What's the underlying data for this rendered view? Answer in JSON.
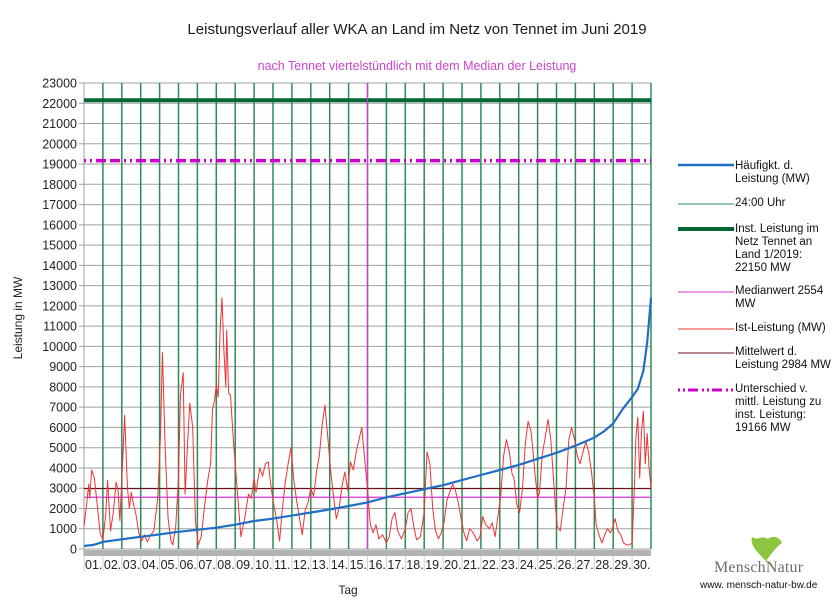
{
  "chart_data": {
    "type": "line",
    "title": "Leistungsverlauf aller WKA an Land im Netz von Tennet im Juni 2019",
    "subtitle": "nach Tennet viertelstündlich mit dem Median der Leistung",
    "xlabel": "Tag",
    "ylabel": "Leistung in MW",
    "ylim": [
      0,
      23000
    ],
    "xlim": [
      0,
      30
    ],
    "y_ticks": [
      0,
      1000,
      2000,
      3000,
      4000,
      5000,
      6000,
      7000,
      8000,
      9000,
      10000,
      11000,
      12000,
      13000,
      14000,
      15000,
      16000,
      17000,
      18000,
      19000,
      20000,
      21000,
      22000,
      23000
    ],
    "x_tick_labels": [
      "01.",
      "02.",
      "03.",
      "04.",
      "05.",
      "06.",
      "07.",
      "08.",
      "09.",
      "10.",
      "11.",
      "12.",
      "13.",
      "14.",
      "15.",
      "16.",
      "17.",
      "18.",
      "19.",
      "20.",
      "21.",
      "22.",
      "23.",
      "24.",
      "25.",
      "26.",
      "27.",
      "28.",
      "29.",
      "30."
    ],
    "grid": true,
    "legend_position": "right",
    "series": [
      {
        "name": "Häufigkt. d. Leistung (MW)",
        "color": "#1f6fc4",
        "style": "solid-thick",
        "points": [
          [
            0,
            150
          ],
          [
            0.5,
            200
          ],
          [
            1,
            350
          ],
          [
            2,
            480
          ],
          [
            3,
            600
          ],
          [
            4,
            720
          ],
          [
            5,
            850
          ],
          [
            6,
            950
          ],
          [
            7,
            1050
          ],
          [
            8,
            1200
          ],
          [
            9,
            1380
          ],
          [
            10,
            1500
          ],
          [
            11,
            1650
          ],
          [
            12,
            1800
          ],
          [
            13,
            1950
          ],
          [
            14,
            2120
          ],
          [
            15,
            2300
          ],
          [
            16,
            2550
          ],
          [
            17,
            2750
          ],
          [
            18,
            2950
          ],
          [
            19,
            3150
          ],
          [
            20,
            3400
          ],
          [
            21,
            3650
          ],
          [
            22,
            3900
          ],
          [
            23,
            4150
          ],
          [
            24,
            4450
          ],
          [
            25,
            4750
          ],
          [
            26,
            5100
          ],
          [
            27,
            5500
          ],
          [
            27.5,
            5800
          ],
          [
            28,
            6200
          ],
          [
            28.5,
            6900
          ],
          [
            29,
            7500
          ],
          [
            29.3,
            7900
          ],
          [
            29.6,
            8800
          ],
          [
            29.8,
            10200
          ],
          [
            30,
            12400
          ]
        ]
      },
      {
        "name": "24:00 Uhr",
        "color": "#2e8b57",
        "style": "vertical-day-lines"
      },
      {
        "name": "Inst. Leistung im Netz Tennet an Land 1/2019: 22150  MW",
        "color": "#006633",
        "style": "solid-very-thick",
        "value": 22150
      },
      {
        "name": "Medianwert 2554 MW",
        "color": "#dd33dd",
        "style": "solid-thin",
        "value": 2554,
        "median_day": 15
      },
      {
        "name": "Ist-Leistung (MW)",
        "color": "#ee3333",
        "style": "solid-thin",
        "points": [
          [
            0,
            1100
          ],
          [
            0.15,
            2300
          ],
          [
            0.25,
            3200
          ],
          [
            0.3,
            2500
          ],
          [
            0.4,
            3900
          ],
          [
            0.55,
            3500
          ],
          [
            0.7,
            2200
          ],
          [
            0.85,
            800
          ],
          [
            1,
            450
          ],
          [
            1.15,
            1700
          ],
          [
            1.25,
            3400
          ],
          [
            1.4,
            900
          ],
          [
            1.55,
            1800
          ],
          [
            1.7,
            3300
          ],
          [
            1.8,
            2900
          ],
          [
            1.9,
            1400
          ],
          [
            2.05,
            4400
          ],
          [
            2.15,
            6600
          ],
          [
            2.3,
            3000
          ],
          [
            2.4,
            2000
          ],
          [
            2.5,
            2800
          ],
          [
            2.6,
            2300
          ],
          [
            2.75,
            1700
          ],
          [
            2.9,
            800
          ],
          [
            3.05,
            400
          ],
          [
            3.2,
            700
          ],
          [
            3.35,
            350
          ],
          [
            3.5,
            650
          ],
          [
            3.7,
            900
          ],
          [
            3.9,
            2500
          ],
          [
            4.05,
            5600
          ],
          [
            4.15,
            9700
          ],
          [
            4.3,
            4800
          ],
          [
            4.45,
            1500
          ],
          [
            4.6,
            400
          ],
          [
            4.7,
            200
          ],
          [
            4.85,
            1100
          ],
          [
            5,
            3500
          ],
          [
            5.1,
            7600
          ],
          [
            5.25,
            8700
          ],
          [
            5.35,
            2700
          ],
          [
            5.5,
            5500
          ],
          [
            5.6,
            7200
          ],
          [
            5.75,
            6000
          ],
          [
            5.9,
            1300
          ],
          [
            6.05,
            200
          ],
          [
            6.2,
            600
          ],
          [
            6.4,
            2300
          ],
          [
            6.55,
            3400
          ],
          [
            6.7,
            4200
          ],
          [
            6.8,
            6900
          ],
          [
            6.9,
            7300
          ],
          [
            7.0,
            8100
          ],
          [
            7.1,
            7500
          ],
          [
            7.2,
            10800
          ],
          [
            7.3,
            12400
          ],
          [
            7.4,
            9800
          ],
          [
            7.5,
            8000
          ],
          [
            7.55,
            10800
          ],
          [
            7.65,
            7700
          ],
          [
            7.75,
            7600
          ],
          [
            7.9,
            5400
          ],
          [
            8.1,
            3000
          ],
          [
            8.3,
            600
          ],
          [
            8.5,
            1500
          ],
          [
            8.7,
            2700
          ],
          [
            8.85,
            2500
          ],
          [
            9.0,
            3500
          ],
          [
            9.1,
            2800
          ],
          [
            9.3,
            4000
          ],
          [
            9.45,
            3600
          ],
          [
            9.6,
            4200
          ],
          [
            9.75,
            4300
          ],
          [
            9.85,
            3400
          ],
          [
            10.0,
            2400
          ],
          [
            10.2,
            1400
          ],
          [
            10.35,
            400
          ],
          [
            10.5,
            2000
          ],
          [
            10.65,
            3300
          ],
          [
            10.8,
            4200
          ],
          [
            10.95,
            5000
          ],
          [
            11.1,
            3400
          ],
          [
            11.25,
            2400
          ],
          [
            11.4,
            1500
          ],
          [
            11.55,
            700
          ],
          [
            11.7,
            1900
          ],
          [
            11.85,
            2300
          ],
          [
            12.0,
            3000
          ],
          [
            12.15,
            2600
          ],
          [
            12.3,
            3800
          ],
          [
            12.45,
            4600
          ],
          [
            12.6,
            6100
          ],
          [
            12.75,
            7100
          ],
          [
            12.9,
            5500
          ],
          [
            13.05,
            3900
          ],
          [
            13.2,
            2600
          ],
          [
            13.35,
            1500
          ],
          [
            13.5,
            2000
          ],
          [
            13.65,
            3100
          ],
          [
            13.8,
            3800
          ],
          [
            13.95,
            2900
          ],
          [
            14.1,
            4300
          ],
          [
            14.25,
            3900
          ],
          [
            14.4,
            4800
          ],
          [
            14.55,
            5400
          ],
          [
            14.7,
            6000
          ],
          [
            14.85,
            4400
          ],
          [
            15.0,
            3000
          ],
          [
            15.15,
            1200
          ],
          [
            15.3,
            800
          ],
          [
            15.45,
            1200
          ],
          [
            15.6,
            500
          ],
          [
            15.8,
            700
          ],
          [
            16.0,
            300
          ],
          [
            16.15,
            600
          ],
          [
            16.3,
            1500
          ],
          [
            16.45,
            1800
          ],
          [
            16.6,
            900
          ],
          [
            16.8,
            500
          ],
          [
            17.0,
            1000
          ],
          [
            17.15,
            1800
          ],
          [
            17.3,
            2000
          ],
          [
            17.45,
            1100
          ],
          [
            17.6,
            450
          ],
          [
            17.8,
            600
          ],
          [
            18.0,
            1800
          ],
          [
            18.15,
            4800
          ],
          [
            18.3,
            4200
          ],
          [
            18.45,
            2000
          ],
          [
            18.6,
            900
          ],
          [
            18.75,
            500
          ],
          [
            18.9,
            800
          ],
          [
            19.05,
            1300
          ],
          [
            19.2,
            2400
          ],
          [
            19.35,
            2800
          ],
          [
            19.5,
            3200
          ],
          [
            19.65,
            2900
          ],
          [
            19.8,
            2300
          ],
          [
            19.95,
            1500
          ],
          [
            20.1,
            800
          ],
          [
            20.25,
            400
          ],
          [
            20.4,
            1000
          ],
          [
            20.6,
            800
          ],
          [
            20.8,
            400
          ],
          [
            20.95,
            600
          ],
          [
            21.1,
            1600
          ],
          [
            21.25,
            1200
          ],
          [
            21.45,
            1000
          ],
          [
            21.6,
            1300
          ],
          [
            21.75,
            600
          ],
          [
            21.9,
            1600
          ],
          [
            22.05,
            2600
          ],
          [
            22.2,
            4600
          ],
          [
            22.35,
            5400
          ],
          [
            22.5,
            4800
          ],
          [
            22.65,
            3700
          ],
          [
            22.75,
            3500
          ],
          [
            22.9,
            2200
          ],
          [
            23.05,
            1800
          ],
          [
            23.2,
            3000
          ],
          [
            23.35,
            5200
          ],
          [
            23.5,
            6300
          ],
          [
            23.65,
            5800
          ],
          [
            23.75,
            4900
          ],
          [
            23.85,
            3800
          ],
          [
            24.0,
            2500
          ],
          [
            24.1,
            2800
          ],
          [
            24.25,
            4700
          ],
          [
            24.4,
            5500
          ],
          [
            24.55,
            6400
          ],
          [
            24.7,
            5400
          ],
          [
            24.85,
            3300
          ],
          [
            24.95,
            2000
          ],
          [
            25.05,
            1100
          ],
          [
            25.2,
            900
          ],
          [
            25.35,
            2000
          ],
          [
            25.5,
            3000
          ],
          [
            25.65,
            5400
          ],
          [
            25.8,
            6000
          ],
          [
            25.95,
            5400
          ],
          [
            26.1,
            4600
          ],
          [
            26.25,
            4200
          ],
          [
            26.4,
            4800
          ],
          [
            26.55,
            5300
          ],
          [
            26.7,
            4800
          ],
          [
            26.85,
            3800
          ],
          [
            27.0,
            2500
          ],
          [
            27.1,
            1200
          ],
          [
            27.25,
            700
          ],
          [
            27.4,
            300
          ],
          [
            27.55,
            700
          ],
          [
            27.7,
            1000
          ],
          [
            27.85,
            800
          ],
          [
            27.95,
            1000
          ],
          [
            28.1,
            1500
          ],
          [
            28.25,
            900
          ],
          [
            28.4,
            700
          ],
          [
            28.55,
            300
          ],
          [
            28.7,
            200
          ],
          [
            28.85,
            200
          ],
          [
            29.0,
            300
          ],
          [
            29.1,
            2500
          ],
          [
            29.2,
            5500
          ],
          [
            29.3,
            6500
          ],
          [
            29.4,
            3500
          ],
          [
            29.5,
            5800
          ],
          [
            29.6,
            6800
          ],
          [
            29.7,
            4200
          ],
          [
            29.8,
            5700
          ],
          [
            29.9,
            4000
          ],
          [
            30.0,
            3000
          ]
        ]
      },
      {
        "name": "Mittelwert d. Leistung 2984 MW",
        "color": "#6b0f1a",
        "style": "solid-thin",
        "value": 2984
      },
      {
        "name": "Unterschied v. mittl. Leistung zu inst. Leistung: 19166 MW",
        "color": "#cc00cc",
        "style": "dash-dot-thick",
        "value": 19166
      }
    ]
  },
  "legend": {
    "items": [
      {
        "label": "Häufigkt. d. Leistung (MW)"
      },
      {
        "label": "24:00 Uhr"
      },
      {
        "label": "Inst. Leistung im Netz Tennet an Land 1/2019: 22150  MW"
      },
      {
        "label": "Medianwert 2554 MW"
      },
      {
        "label": "Ist-Leistung (MW)"
      },
      {
        "label": "Mittelwert d. Leistung 2984 MW"
      },
      {
        "label": "Unterschied v. mittl. Leistung zu inst. Leistung: 19166 MW"
      }
    ]
  },
  "logo": {
    "name": "MenschNatur",
    "url": "www. mensch-natur-bw.de",
    "leaf_color": "#8cc63f"
  }
}
